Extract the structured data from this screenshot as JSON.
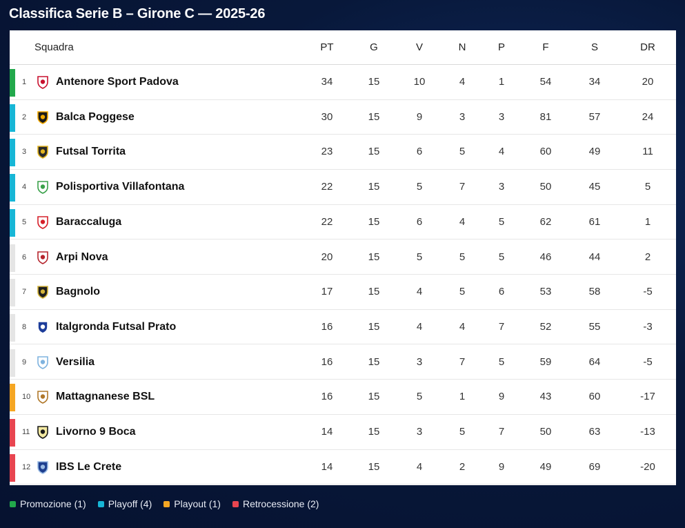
{
  "title": "Classifica Serie B – Girone C — 2025-26",
  "colors": {
    "promozione": "#22a84b",
    "playoff": "#17b6d6",
    "none": "#e5e5e5",
    "playout": "#f5a623",
    "retrocessione": "#e84550"
  },
  "columns": {
    "team": "Squadra",
    "pt": "PT",
    "g": "G",
    "v": "V",
    "n": "N",
    "p": "P",
    "f": "F",
    "s": "S",
    "dr": "DR"
  },
  "rows": [
    {
      "pos": "1",
      "team": "Antenore Sport Padova",
      "zone": "promozione",
      "logo": "padova-crest-icon",
      "pt": "34",
      "g": "15",
      "v": "10",
      "n": "4",
      "p": "1",
      "f": "54",
      "s": "34",
      "dr": "20"
    },
    {
      "pos": "2",
      "team": "Balca Poggese",
      "zone": "playoff",
      "logo": "poggese-crest-icon",
      "pt": "30",
      "g": "15",
      "v": "9",
      "n": "3",
      "p": "3",
      "f": "81",
      "s": "57",
      "dr": "24"
    },
    {
      "pos": "3",
      "team": "Futsal Torrita",
      "zone": "playoff",
      "logo": "torrita-crest-icon",
      "pt": "23",
      "g": "15",
      "v": "6",
      "n": "5",
      "p": "4",
      "f": "60",
      "s": "49",
      "dr": "11"
    },
    {
      "pos": "4",
      "team": "Polisportiva Villafontana",
      "zone": "playoff",
      "logo": "villafontana-crest-icon",
      "pt": "22",
      "g": "15",
      "v": "5",
      "n": "7",
      "p": "3",
      "f": "50",
      "s": "45",
      "dr": "5"
    },
    {
      "pos": "5",
      "team": "Baraccaluga",
      "zone": "playoff",
      "logo": "baraccaluga-crest-icon",
      "pt": "22",
      "g": "15",
      "v": "6",
      "n": "4",
      "p": "5",
      "f": "62",
      "s": "61",
      "dr": "1"
    },
    {
      "pos": "6",
      "team": "Arpi Nova",
      "zone": "none",
      "logo": "arpi-nova-crest-icon",
      "pt": "20",
      "g": "15",
      "v": "5",
      "n": "5",
      "p": "5",
      "f": "46",
      "s": "44",
      "dr": "2"
    },
    {
      "pos": "7",
      "team": "Bagnolo",
      "zone": "none",
      "logo": "bagnolo-crest-icon",
      "pt": "17",
      "g": "15",
      "v": "4",
      "n": "5",
      "p": "6",
      "f": "53",
      "s": "58",
      "dr": "-5"
    },
    {
      "pos": "8",
      "team": "Italgronda Futsal Prato",
      "zone": "none",
      "logo": "italgronda-crest-icon",
      "pt": "16",
      "g": "15",
      "v": "4",
      "n": "4",
      "p": "7",
      "f": "52",
      "s": "55",
      "dr": "-3"
    },
    {
      "pos": "9",
      "team": "Versilia",
      "zone": "none",
      "logo": "versilia-crest-icon",
      "pt": "16",
      "g": "15",
      "v": "3",
      "n": "7",
      "p": "5",
      "f": "59",
      "s": "64",
      "dr": "-5"
    },
    {
      "pos": "10",
      "team": "Mattagnanese BSL",
      "zone": "playout",
      "logo": "mattagnanese-crest-icon",
      "pt": "16",
      "g": "15",
      "v": "5",
      "n": "1",
      "p": "9",
      "f": "43",
      "s": "60",
      "dr": "-17"
    },
    {
      "pos": "11",
      "team": "Livorno 9 Boca",
      "zone": "retrocessione",
      "logo": "livorno-crest-icon",
      "pt": "14",
      "g": "15",
      "v": "3",
      "n": "5",
      "p": "7",
      "f": "50",
      "s": "63",
      "dr": "-13"
    },
    {
      "pos": "12",
      "team": "IBS Le Crete",
      "zone": "retrocessione",
      "logo": "le-crete-crest-icon",
      "pt": "14",
      "g": "15",
      "v": "4",
      "n": "2",
      "p": "9",
      "f": "49",
      "s": "69",
      "dr": "-20"
    }
  ],
  "legend": [
    {
      "label": "Promozione (1)",
      "zone": "promozione"
    },
    {
      "label": "Playoff (4)",
      "zone": "playoff"
    },
    {
      "label": "Playout (1)",
      "zone": "playout"
    },
    {
      "label": "Retrocessione (2)",
      "zone": "retrocessione"
    }
  ]
}
